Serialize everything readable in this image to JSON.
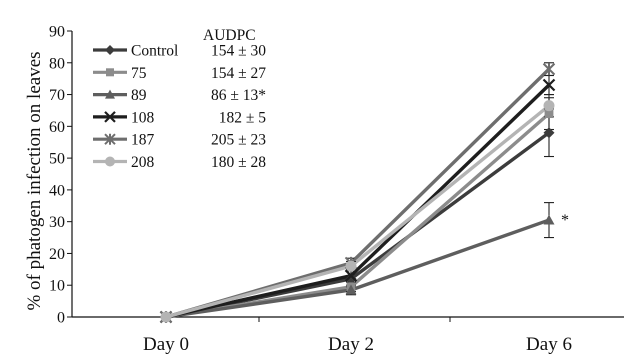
{
  "chart_data": {
    "type": "line",
    "title": "",
    "xlabel": "",
    "ylabel": "% of phatogen infection on leaves",
    "ylim": [
      0,
      90
    ],
    "yticks": [
      0,
      10,
      20,
      30,
      40,
      50,
      60,
      70,
      80,
      90
    ],
    "categories": [
      "Day 0",
      "Day 2",
      "Day 6"
    ],
    "grid": false,
    "legend_position": "top-left",
    "legend_value_header": "AUDPC",
    "series": [
      {
        "name": "Control",
        "values": [
          0,
          12,
          58
        ],
        "error": [
          0,
          2.5,
          7.5
        ],
        "marker": "diamond",
        "color": "#3c3c3c",
        "audpc": "154 ± 30"
      },
      {
        "name": "75",
        "values": [
          0,
          9.5,
          64
        ],
        "error": [
          0,
          1.5,
          5
        ],
        "marker": "square",
        "color": "#8c8c8c",
        "audpc": "154 ± 27"
      },
      {
        "name": "89",
        "values": [
          0,
          8.5,
          30.5
        ],
        "error": [
          0,
          1.5,
          5.5
        ],
        "marker": "triangle",
        "color": "#5e5e5e",
        "audpc": "86 ± 13*"
      },
      {
        "name": "108",
        "values": [
          0,
          13,
          73
        ],
        "error": [
          0,
          2,
          3
        ],
        "marker": "x",
        "color": "#1e1e1e",
        "audpc": "182 ± 5"
      },
      {
        "name": "187",
        "values": [
          0,
          17,
          78
        ],
        "error": [
          0,
          1.5,
          2
        ],
        "marker": "asterisk",
        "color": "#6e6e6e",
        "audpc": "205 ± 23"
      },
      {
        "name": "208",
        "values": [
          0,
          16,
          66.5
        ],
        "error": [
          0,
          1.5,
          3.5
        ],
        "marker": "circle",
        "color": "#b4b4b4",
        "audpc": "180 ± 28"
      }
    ],
    "annotations": [
      {
        "text": "*",
        "category": "Day 6",
        "series": "89"
      }
    ]
  }
}
